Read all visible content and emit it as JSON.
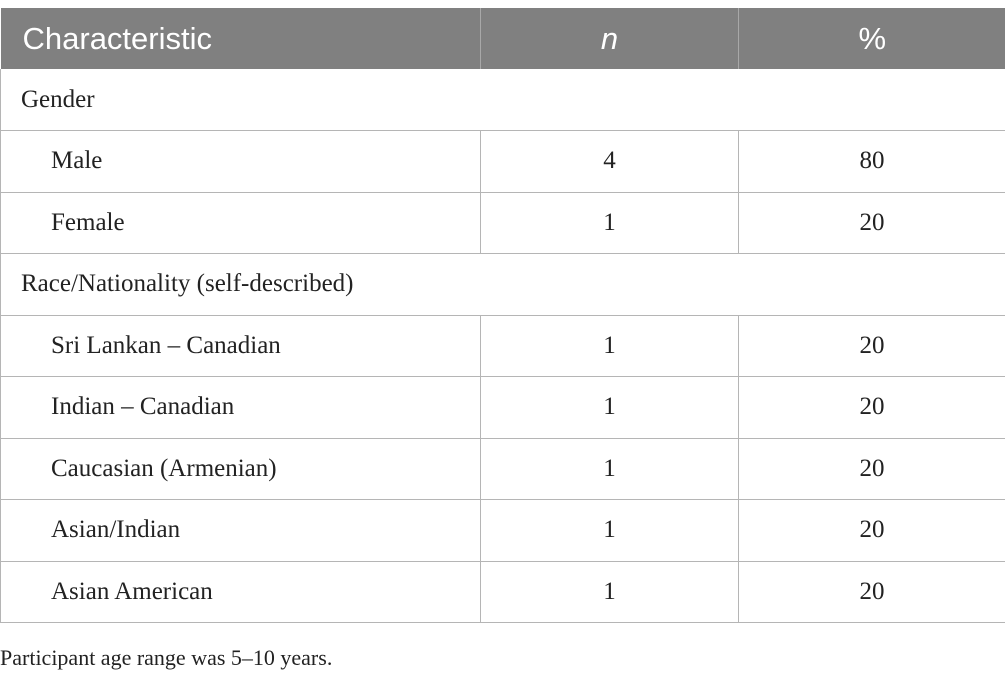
{
  "table": {
    "headers": {
      "characteristic": "Characteristic",
      "n": "n",
      "percent": "%"
    },
    "groups": [
      {
        "label": "Gender",
        "rows": [
          {
            "label": "Male",
            "n": "4",
            "percent": "80"
          },
          {
            "label": "Female",
            "n": "1",
            "percent": "20"
          }
        ]
      },
      {
        "label": "Race/Nationality (self-described)",
        "rows": [
          {
            "label": "Sri Lankan – Canadian",
            "n": "1",
            "percent": "20"
          },
          {
            "label": "Indian – Canadian",
            "n": "1",
            "percent": "20"
          },
          {
            "label": "Caucasian (Armenian)",
            "n": "1",
            "percent": "20"
          },
          {
            "label": "Asian/Indian",
            "n": "1",
            "percent": "20"
          },
          {
            "label": "Asian American",
            "n": "1",
            "percent": "20"
          }
        ]
      }
    ]
  },
  "footnote": "Participant age range was 5–10 years.",
  "colors": {
    "header_bg": "#808080",
    "header_text": "#ffffff",
    "border": "#b5b5b5",
    "text": "#222222"
  }
}
